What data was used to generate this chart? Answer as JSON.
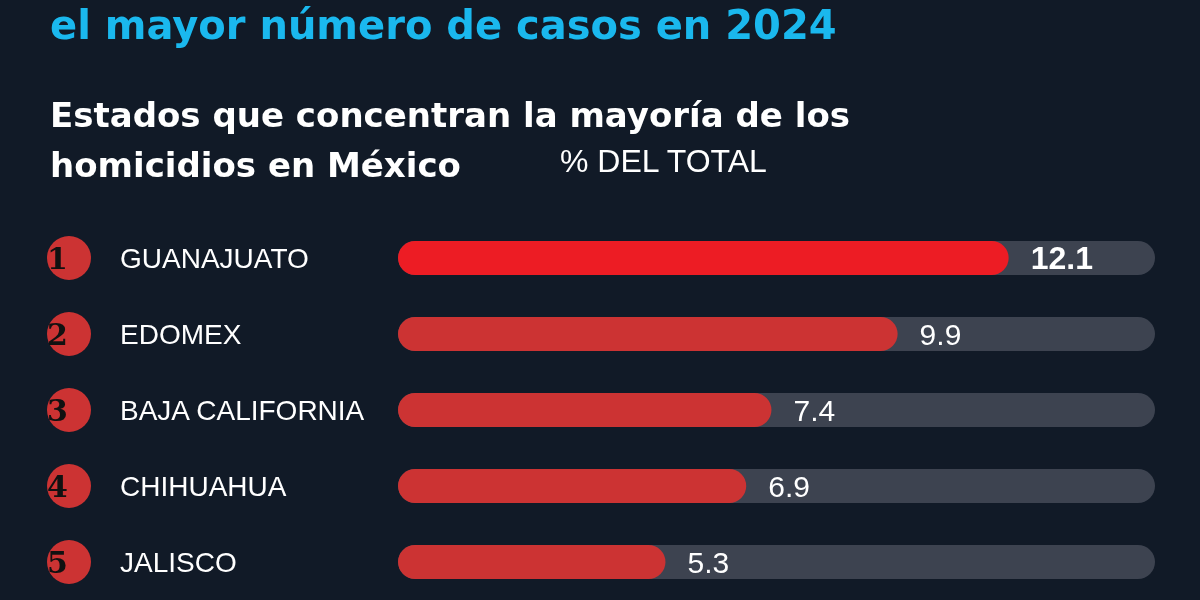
{
  "chart_data": {
    "type": "bar",
    "orientation": "horizontal",
    "title": "el mayor número de casos en 2024",
    "subtitle": "Estados que concentran la mayoría de los homicidios en México",
    "xlabel": "% DEL TOTAL",
    "categories": [
      "GUANAJUATO",
      "EDOMEX",
      "BAJA CALIFORNIA",
      "CHIHUAHUA",
      "JALISCO"
    ],
    "values": [
      12.1,
      9.9,
      7.4,
      6.9,
      5.3
    ],
    "colors": [
      "#ed1c24",
      "#cc3333",
      "#cc3333",
      "#cc3333",
      "#cc3333"
    ],
    "xlim": [
      0,
      15
    ],
    "data_labels": true,
    "grid": false,
    "annotations": [
      "1",
      "2",
      "3",
      "4",
      "5"
    ]
  }
}
